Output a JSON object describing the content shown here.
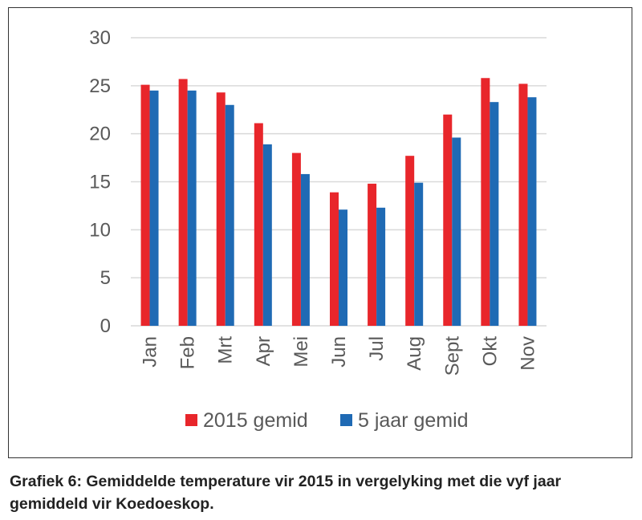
{
  "chart_data": {
    "type": "bar",
    "categories": [
      "Jan",
      "Feb",
      "Mrt",
      "Apr",
      "Mei",
      "Jun",
      "Jul",
      "Aug",
      "Sept",
      "Okt",
      "Nov"
    ],
    "series": [
      {
        "name": "2015 gemid",
        "color": "#e8262b",
        "values": [
          25.1,
          25.7,
          24.3,
          21.1,
          18.0,
          13.9,
          14.8,
          17.7,
          22.0,
          25.8,
          25.2
        ]
      },
      {
        "name": "5 jaar gemid",
        "color": "#1f6ab4",
        "values": [
          24.5,
          24.5,
          23.0,
          18.9,
          15.8,
          12.1,
          12.3,
          14.9,
          19.6,
          23.3,
          23.8
        ]
      }
    ],
    "ylim": [
      0,
      30
    ],
    "yticks": [
      0,
      5,
      10,
      15,
      20,
      25,
      30
    ],
    "grid": true,
    "legend_position": "bottom",
    "gridline_color": "#d9d9d9"
  },
  "caption": "Grafiek 6: Gemiddelde temperature vir 2015 in vergelyking met die vyf jaar gemiddeld vir Koedoeskop."
}
